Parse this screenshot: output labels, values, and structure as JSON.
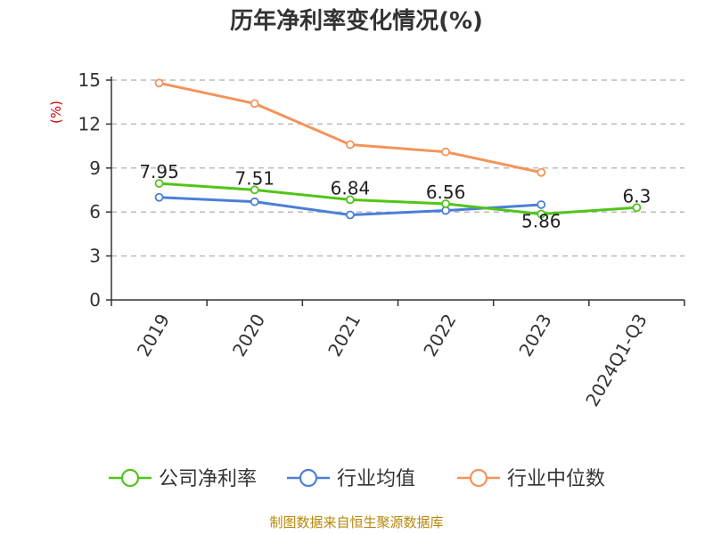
{
  "chart_data": {
    "type": "line",
    "title": "历年净利率变化情况(%)",
    "ylabel": "(%)",
    "xlabel": "",
    "categories": [
      "2019",
      "2020",
      "2021",
      "2022",
      "2023",
      "2024Q1-Q3"
    ],
    "ylim": [
      0,
      15
    ],
    "yticks": [
      0,
      3,
      6,
      9,
      12,
      15
    ],
    "grid": true,
    "legend_position": "bottom",
    "series": [
      {
        "name": "公司净利率",
        "color": "#52c41a",
        "values": [
          7.95,
          7.51,
          6.84,
          6.56,
          5.86,
          6.3
        ],
        "labels": [
          "7.95",
          "7.51",
          "6.84",
          "6.56",
          "5.86",
          "6.3"
        ]
      },
      {
        "name": "行业均值",
        "color": "#4a7fd8",
        "values": [
          7.0,
          6.7,
          5.8,
          6.1,
          6.5,
          null
        ]
      },
      {
        "name": "行业中位数",
        "color": "#f4935a",
        "values": [
          14.8,
          13.4,
          10.6,
          10.1,
          8.7,
          null
        ]
      }
    ]
  },
  "footer": {
    "source": "制图数据来自恒生聚源数据库"
  }
}
